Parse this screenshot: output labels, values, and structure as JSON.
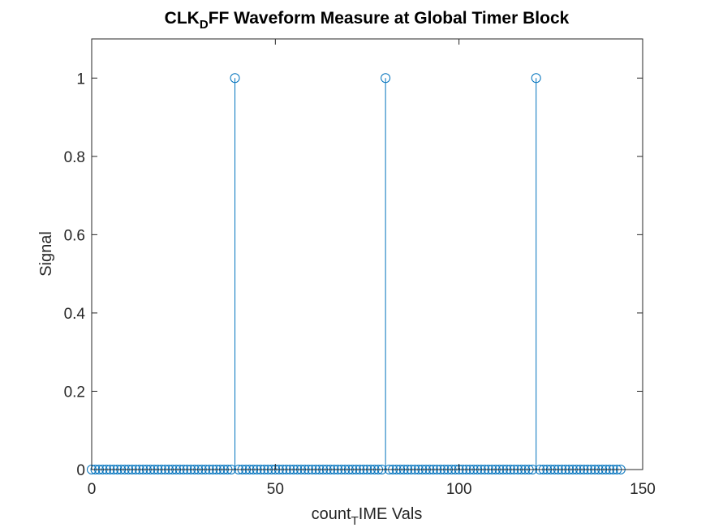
{
  "chart_data": {
    "type": "stem",
    "title": "CLK_D FF Waveform Measure at Global Timer Block",
    "title_parts": {
      "main": "CLK",
      "sub": "D",
      "rest": "FF Waveform Measure at Global Timer Block"
    },
    "xlabel": "count_T IME Vals",
    "xlabel_parts": {
      "main": "count",
      "sub": "T",
      "rest": "IME Vals"
    },
    "ylabel": "Signal",
    "xlim": [
      0,
      150
    ],
    "ylim": [
      0,
      1.1
    ],
    "xticks": [
      0,
      50,
      100,
      150
    ],
    "yticks": [
      0,
      0.2,
      0.4,
      0.6,
      0.8,
      1
    ],
    "ytick_labels": [
      "0",
      "0.2",
      "0.4",
      "0.6",
      "0.8",
      "1"
    ],
    "grid": false,
    "box": true,
    "series": [
      {
        "x_start": 0,
        "x_end": 144,
        "x_step": 1,
        "baseline_value": 0,
        "pulses": [
          {
            "x": 39,
            "y": 1
          },
          {
            "x": 80,
            "y": 1
          },
          {
            "x": 121,
            "y": 1
          }
        ],
        "color": "#0072BD",
        "marker": "circle"
      }
    ]
  }
}
